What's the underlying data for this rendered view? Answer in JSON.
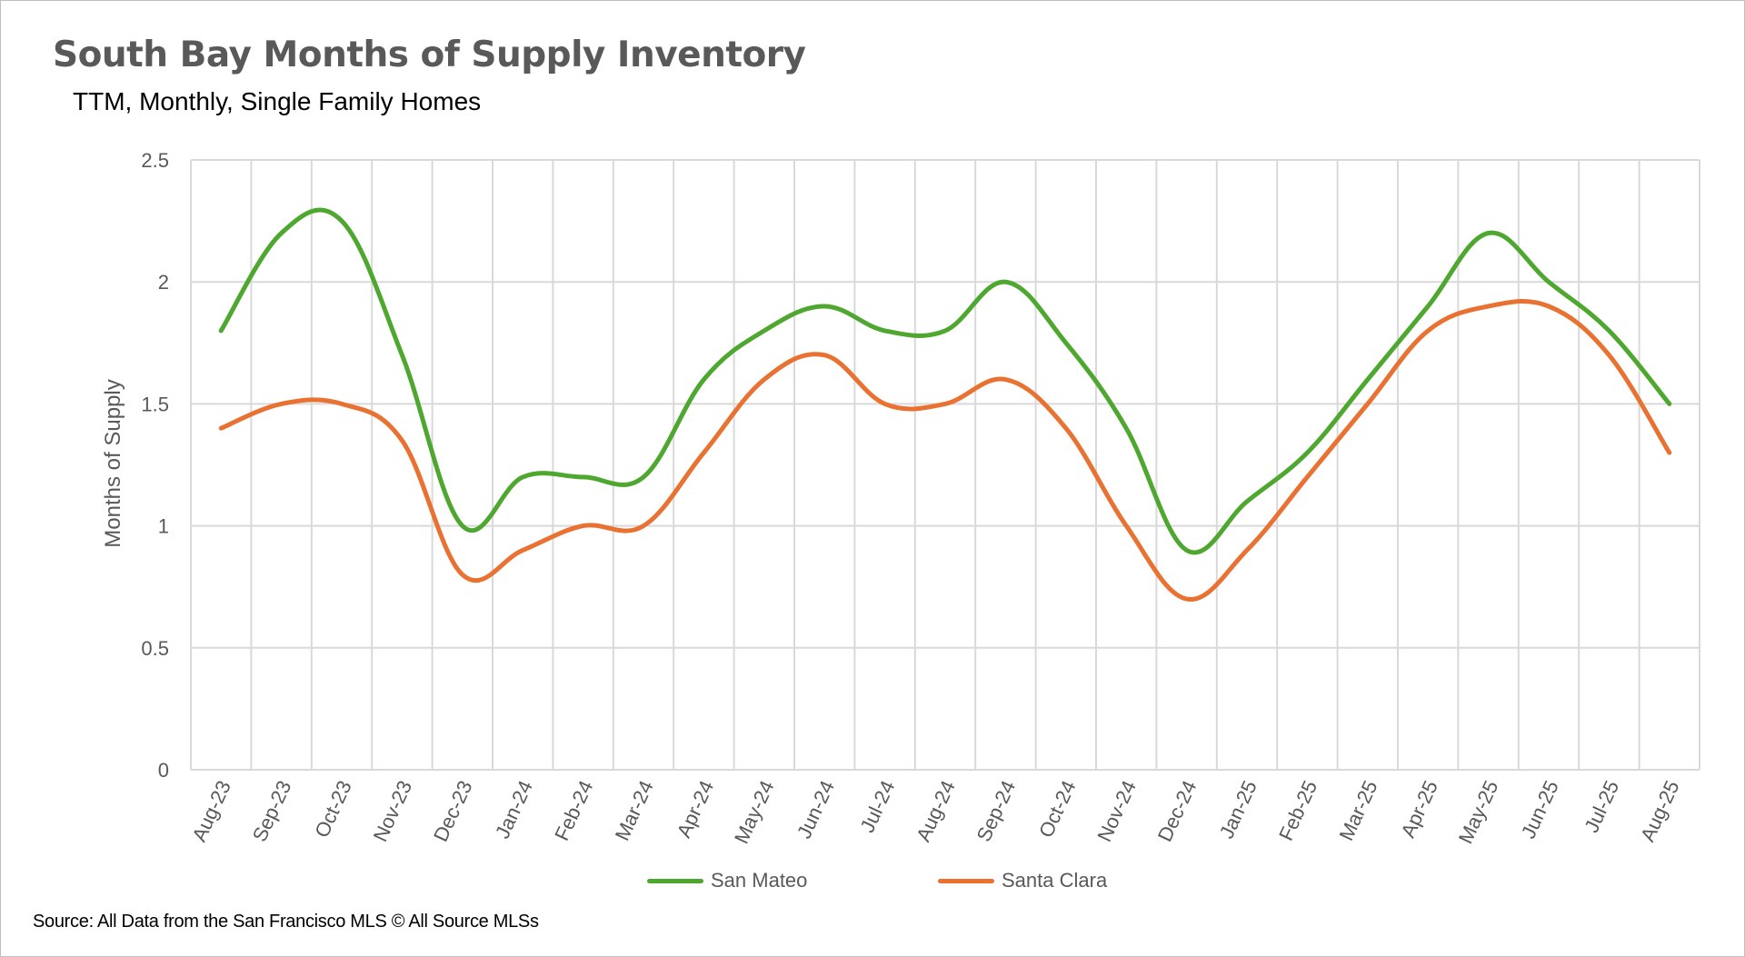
{
  "chart_data": {
    "type": "line",
    "title": "South Bay Months of Supply Inventory",
    "subtitle": "TTM, Monthly, Single Family Homes",
    "xlabel": "",
    "ylabel": "Months of Supply",
    "categories": [
      "Aug-23",
      "Sep-23",
      "Oct-23",
      "Nov-23",
      "Dec-23",
      "Jan-24",
      "Feb-24",
      "Mar-24",
      "Apr-24",
      "May-24",
      "Jun-24",
      "Jul-24",
      "Aug-24",
      "Sep-24",
      "Oct-24",
      "Nov-24",
      "Dec-24",
      "Jan-25",
      "Feb-25",
      "Mar-25",
      "Apr-25",
      "May-25",
      "Jun-25",
      "Jul-25",
      "Aug-25"
    ],
    "ylim": [
      0,
      2.5
    ],
    "yticks": [
      "0",
      "0.5",
      "1",
      "1.5",
      "2",
      "2.5"
    ],
    "grid": true,
    "legend_position": "bottom",
    "smooth": true,
    "series": [
      {
        "name": "San Mateo",
        "color": "#4ea72e",
        "values": [
          1.8,
          2.2,
          2.25,
          1.7,
          1.0,
          1.2,
          1.2,
          1.2,
          1.6,
          1.8,
          1.9,
          1.8,
          1.8,
          2.0,
          1.75,
          1.4,
          0.9,
          1.1,
          1.3,
          1.6,
          1.9,
          2.2,
          2.0,
          1.8,
          1.5
        ]
      },
      {
        "name": "Santa Clara",
        "color": "#e97132",
        "values": [
          1.4,
          1.5,
          1.5,
          1.35,
          0.8,
          0.9,
          1.0,
          1.0,
          1.3,
          1.6,
          1.7,
          1.5,
          1.5,
          1.6,
          1.4,
          1.0,
          0.7,
          0.9,
          1.2,
          1.5,
          1.8,
          1.9,
          1.9,
          1.7,
          1.3
        ]
      }
    ]
  },
  "source_note": "Source: All Data from the San Francisco MLS © All Source MLSs",
  "colors": {
    "gridline": "#d9d9d9",
    "axis_text": "#595959",
    "title": "#595959"
  }
}
